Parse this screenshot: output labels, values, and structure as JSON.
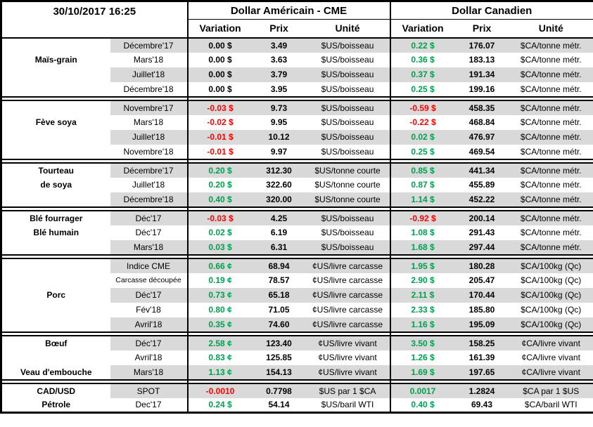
{
  "colors": {
    "positive": "#00A04F",
    "negative": "#FF0000",
    "zero": "#000000",
    "band": "#D9D9D9"
  },
  "chart_data": {
    "type": "table",
    "timestamp": "30/10/2017 16:25",
    "header": {
      "us_section": "Dollar Américain - CME",
      "ca_section": "Dollar Canadien",
      "variation": "Variation",
      "prix": "Prix",
      "unite": "Unité"
    },
    "groups": [
      {
        "name": "Maïs-grain",
        "rows": [
          {
            "label": "",
            "month": "Décembre'17",
            "us_var": "0.00 $",
            "us_sign": "zero",
            "us_price": "3.49",
            "us_unit": "$US/boisseau",
            "ca_var": "0.22 $",
            "ca_sign": "pos",
            "ca_price": "176.07",
            "ca_unit": "$CA/tonne métr."
          },
          {
            "label": "Maïs-grain",
            "month": "Mars'18",
            "us_var": "0.00 $",
            "us_sign": "zero",
            "us_price": "3.63",
            "us_unit": "$US/boisseau",
            "ca_var": "0.36 $",
            "ca_sign": "pos",
            "ca_price": "183.13",
            "ca_unit": "$CA/tonne métr."
          },
          {
            "label": "",
            "month": "Juillet'18",
            "us_var": "0.00 $",
            "us_sign": "zero",
            "us_price": "3.79",
            "us_unit": "$US/boisseau",
            "ca_var": "0.37 $",
            "ca_sign": "pos",
            "ca_price": "191.34",
            "ca_unit": "$CA/tonne métr."
          },
          {
            "label": "",
            "month": "Décembre'18",
            "us_var": "0.00 $",
            "us_sign": "zero",
            "us_price": "3.95",
            "us_unit": "$US/boisseau",
            "ca_var": "0.25 $",
            "ca_sign": "pos",
            "ca_price": "199.16",
            "ca_unit": "$CA/tonne métr."
          }
        ]
      },
      {
        "name": "Fève soya",
        "rows": [
          {
            "label": "",
            "month": "Novembre'17",
            "us_var": "-0.03 $",
            "us_sign": "neg",
            "us_price": "9.73",
            "us_unit": "$US/boisseau",
            "ca_var": "-0.59 $",
            "ca_sign": "neg",
            "ca_price": "458.35",
            "ca_unit": "$CA/tonne métr."
          },
          {
            "label": "Fève soya",
            "month": "Mars'18",
            "us_var": "-0.02 $",
            "us_sign": "neg",
            "us_price": "9.95",
            "us_unit": "$US/boisseau",
            "ca_var": "-0.22 $",
            "ca_sign": "neg",
            "ca_price": "468.84",
            "ca_unit": "$CA/tonne métr."
          },
          {
            "label": "",
            "month": "Juillet'18",
            "us_var": "-0.01 $",
            "us_sign": "neg",
            "us_price": "10.12",
            "us_unit": "$US/boisseau",
            "ca_var": "0.02 $",
            "ca_sign": "pos",
            "ca_price": "476.97",
            "ca_unit": "$CA/tonne métr."
          },
          {
            "label": "",
            "month": "Novembre'18",
            "us_var": "-0.01 $",
            "us_sign": "neg",
            "us_price": "9.97",
            "us_unit": "$US/boisseau",
            "ca_var": "0.25 $",
            "ca_sign": "pos",
            "ca_price": "469.54",
            "ca_unit": "$CA/tonne métr."
          }
        ]
      },
      {
        "name": "Tourteau de soya",
        "rows": [
          {
            "label": "Tourteau",
            "month": "Décembre'17",
            "us_var": "0.20 $",
            "us_sign": "pos",
            "us_price": "312.30",
            "us_unit": "$US/tonne courte",
            "ca_var": "0.85 $",
            "ca_sign": "pos",
            "ca_price": "441.34",
            "ca_unit": "$CA/tonne métr."
          },
          {
            "label": "de soya",
            "month": "Juillet'18",
            "us_var": "0.20 $",
            "us_sign": "pos",
            "us_price": "322.60",
            "us_unit": "$US/tonne courte",
            "ca_var": "0.87 $",
            "ca_sign": "pos",
            "ca_price": "455.89",
            "ca_unit": "$CA/tonne métr."
          },
          {
            "label": "",
            "month": "Décembre'18",
            "us_var": "0.40 $",
            "us_sign": "pos",
            "us_price": "320.00",
            "us_unit": "$US/tonne courte",
            "ca_var": "1.14 $",
            "ca_sign": "pos",
            "ca_price": "452.22",
            "ca_unit": "$CA/tonne métr."
          }
        ]
      },
      {
        "name": "Blé",
        "rows": [
          {
            "label": "Blé fourrager",
            "month": "Déc'17",
            "us_var": "-0.03 $",
            "us_sign": "neg",
            "us_price": "4.25",
            "us_unit": "$US/boisseau",
            "ca_var": "-0.92 $",
            "ca_sign": "neg",
            "ca_price": "200.14",
            "ca_unit": "$CA/tonne métr."
          },
          {
            "label": "Blé humain",
            "month": "Déc'17",
            "us_var": "0.02 $",
            "us_sign": "pos",
            "us_price": "6.19",
            "us_unit": "$US/boisseau",
            "ca_var": "1.08 $",
            "ca_sign": "pos",
            "ca_price": "291.43",
            "ca_unit": "$CA/tonne métr."
          },
          {
            "label": "",
            "month": "Mars'18",
            "us_var": "0.03 $",
            "us_sign": "pos",
            "us_price": "6.31",
            "us_unit": "$US/boisseau",
            "ca_var": "1.68 $",
            "ca_sign": "pos",
            "ca_price": "297.44",
            "ca_unit": "$CA/tonne métr."
          }
        ]
      },
      {
        "name": "Porc",
        "rows": [
          {
            "label": "",
            "month": "Indice CME",
            "us_var": "0.66 ¢",
            "us_sign": "pos",
            "us_price": "68.94",
            "us_unit": "¢US/livre carcasse",
            "ca_var": "1.95 $",
            "ca_sign": "pos",
            "ca_price": "180.28",
            "ca_unit": "$CA/100kg (Qc)"
          },
          {
            "label": "",
            "month": "Carcasse découpée",
            "month_small": true,
            "us_var": "0.19 ¢",
            "us_sign": "pos",
            "us_price": "78.57",
            "us_unit": "¢US/livre carcasse",
            "ca_var": "2.90 $",
            "ca_sign": "pos",
            "ca_price": "205.47",
            "ca_unit": "$CA/100kg (Qc)"
          },
          {
            "label": "Porc",
            "month": "Déc'17",
            "us_var": "0.73 ¢",
            "us_sign": "pos",
            "us_price": "65.18",
            "us_unit": "¢US/livre carcasse",
            "ca_var": "2.11 $",
            "ca_sign": "pos",
            "ca_price": "170.44",
            "ca_unit": "$CA/100kg (Qc)"
          },
          {
            "label": "",
            "month": "Fév'18",
            "us_var": "0.80 ¢",
            "us_sign": "pos",
            "us_price": "71.05",
            "us_unit": "¢US/livre carcasse",
            "ca_var": "2.33 $",
            "ca_sign": "pos",
            "ca_price": "185.80",
            "ca_unit": "$CA/100kg (Qc)"
          },
          {
            "label": "",
            "month": "Avril'18",
            "us_var": "0.35 ¢",
            "us_sign": "pos",
            "us_price": "74.60",
            "us_unit": "¢US/livre carcasse",
            "ca_var": "1.16 $",
            "ca_sign": "pos",
            "ca_price": "195.09",
            "ca_unit": "$CA/100kg (Qc)"
          }
        ]
      },
      {
        "name": "Bœuf / Veau d'embouche",
        "rows": [
          {
            "label": "Bœuf",
            "month": "Déc'17",
            "us_var": "2.58 ¢",
            "us_sign": "pos",
            "us_price": "123.40",
            "us_unit": "¢US/livre vivant",
            "ca_var": "3.50 $",
            "ca_sign": "pos",
            "ca_price": "158.25",
            "ca_unit": "¢CA/livre vivant"
          },
          {
            "label": "",
            "month": "Avril'18",
            "us_var": "0.83 ¢",
            "us_sign": "pos",
            "us_price": "125.85",
            "us_unit": "¢US/livre vivant",
            "ca_var": "1.26 $",
            "ca_sign": "pos",
            "ca_price": "161.39",
            "ca_unit": "¢CA/livre vivant"
          },
          {
            "label": "Veau d'embouche",
            "month": "Mars'18",
            "us_var": "1.13 ¢",
            "us_sign": "pos",
            "us_price": "154.13",
            "us_unit": "¢US/livre vivant",
            "ca_var": "1.69 $",
            "ca_sign": "pos",
            "ca_price": "197.65",
            "ca_unit": "¢CA/livre vivant"
          }
        ]
      },
      {
        "name": "CAD/USD / Pétrole",
        "rows": [
          {
            "label": "CAD/USD",
            "month": "SPOT",
            "us_var": "-0.0010",
            "us_sign": "neg",
            "us_price": "0.7798",
            "us_unit": "$US par 1 $CA",
            "ca_var": "0.0017",
            "ca_sign": "pos",
            "ca_price": "1.2824",
            "ca_unit": "$CA par 1 $US"
          },
          {
            "label": "Pétrole",
            "month": "Dec'17",
            "us_var": "0.24 $",
            "us_sign": "pos",
            "us_price": "54.14",
            "us_unit": "$US/baril WTI",
            "ca_var": "0.40 $",
            "ca_sign": "pos",
            "ca_price": "69.43",
            "ca_unit": "$CA/baril WTI"
          }
        ]
      }
    ]
  }
}
